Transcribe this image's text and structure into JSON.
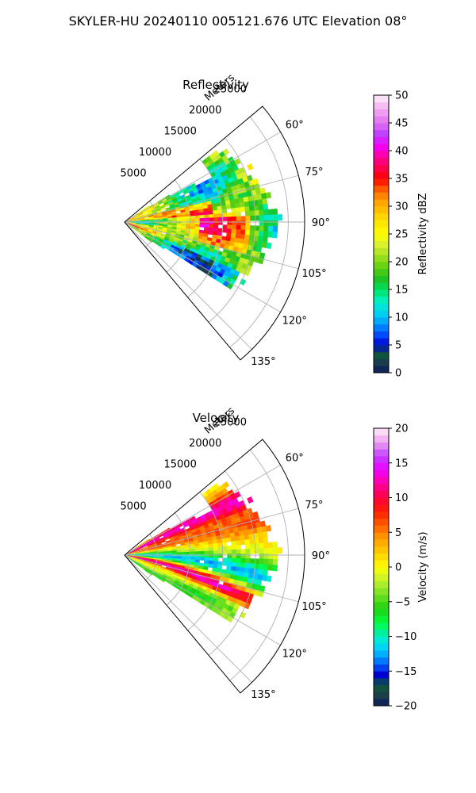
{
  "figure": {
    "title": "SKYLER-HU  20240110  005121.676 UTC Elevation 08°"
  },
  "chart_data": [
    {
      "type": "heatmap",
      "title": "Reflectivity",
      "coordinate_system": "polar-sector",
      "range_label": "Meters",
      "range_ticks": [
        5000,
        10000,
        15000,
        20000,
        25000
      ],
      "range_tick_labels": [
        "5000",
        "10000",
        "15000",
        "20000",
        "25000"
      ],
      "rlim": [
        0,
        27500
      ],
      "azimuth_ticks": [
        60,
        75,
        90,
        105,
        120,
        135
      ],
      "azimuth_tick_labels": [
        "60°",
        "75°",
        "90°",
        "105°",
        "120°",
        "135°"
      ],
      "azimuth_range": [
        50,
        140
      ],
      "grid": true,
      "colorbar": {
        "label": "Reflectivity dBZ",
        "range": [
          0,
          50
        ],
        "ticks": [
          0,
          5,
          10,
          15,
          20,
          25,
          30,
          35,
          40,
          45,
          50
        ],
        "tick_labels": [
          "0",
          "5",
          "10",
          "15",
          "20",
          "25",
          "30",
          "35",
          "40",
          "45",
          "50"
        ],
        "palette": [
          {
            "value": 0,
            "color": "#0a1a5c"
          },
          {
            "value": 2,
            "color": "#1a3f4a"
          },
          {
            "value": 3.5,
            "color": "#0e5a3a"
          },
          {
            "value": 5,
            "color": "#0000d0"
          },
          {
            "value": 7,
            "color": "#0050ff"
          },
          {
            "value": 9,
            "color": "#00a0ff"
          },
          {
            "value": 11,
            "color": "#00d8f0"
          },
          {
            "value": 13,
            "color": "#00f0c0"
          },
          {
            "value": 15,
            "color": "#00e060"
          },
          {
            "value": 17,
            "color": "#20c020"
          },
          {
            "value": 19,
            "color": "#60d010"
          },
          {
            "value": 21,
            "color": "#a0e020"
          },
          {
            "value": 23,
            "color": "#d8f030"
          },
          {
            "value": 25,
            "color": "#ffff00"
          },
          {
            "value": 28,
            "color": "#ffd800"
          },
          {
            "value": 31,
            "color": "#ffa000"
          },
          {
            "value": 33,
            "color": "#ff6000"
          },
          {
            "value": 35,
            "color": "#ff0000"
          },
          {
            "value": 37,
            "color": "#ff0050"
          },
          {
            "value": 39,
            "color": "#ff00a0"
          },
          {
            "value": 41,
            "color": "#f000ff"
          },
          {
            "value": 43,
            "color": "#c040ff"
          },
          {
            "value": 45,
            "color": "#e070f0"
          },
          {
            "value": 47,
            "color": "#f0a0f0"
          },
          {
            "value": 50,
            "color": "#fff0fa"
          }
        ]
      }
    },
    {
      "type": "heatmap",
      "title": "Velocity",
      "coordinate_system": "polar-sector",
      "range_label": "Meters",
      "range_ticks": [
        5000,
        10000,
        15000,
        20000,
        25000
      ],
      "range_tick_labels": [
        "5000",
        "10000",
        "15000",
        "20000",
        "25000"
      ],
      "rlim": [
        0,
        27500
      ],
      "azimuth_ticks": [
        60,
        75,
        90,
        105,
        120,
        135
      ],
      "azimuth_tick_labels": [
        "60°",
        "75°",
        "90°",
        "105°",
        "120°",
        "135°"
      ],
      "azimuth_range": [
        50,
        140
      ],
      "grid": true,
      "colorbar": {
        "label": "Velocity (m/s)",
        "range": [
          -20,
          20
        ],
        "ticks": [
          -20,
          -15,
          -10,
          -5,
          0,
          5,
          10,
          15,
          20
        ],
        "tick_labels": [
          "−20",
          "−15",
          "−10",
          "−5",
          "0",
          "5",
          "10",
          "15",
          "20"
        ],
        "palette": [
          {
            "value": -20,
            "color": "#0a1a5c"
          },
          {
            "value": -18.5,
            "color": "#1a3f4a"
          },
          {
            "value": -17,
            "color": "#0e5a3a"
          },
          {
            "value": -15.5,
            "color": "#0000d0"
          },
          {
            "value": -14,
            "color": "#0060ff"
          },
          {
            "value": -12.5,
            "color": "#00b0ff"
          },
          {
            "value": -11,
            "color": "#00e8f0"
          },
          {
            "value": -9.5,
            "color": "#00f0a0"
          },
          {
            "value": -8,
            "color": "#00ff40"
          },
          {
            "value": -6,
            "color": "#20d010"
          },
          {
            "value": -4,
            "color": "#70e020"
          },
          {
            "value": -2,
            "color": "#c0f030"
          },
          {
            "value": 0,
            "color": "#ffff00"
          },
          {
            "value": 2,
            "color": "#ffd000"
          },
          {
            "value": 4,
            "color": "#ffa000"
          },
          {
            "value": 6,
            "color": "#ff6000"
          },
          {
            "value": 8,
            "color": "#ff2000"
          },
          {
            "value": 10,
            "color": "#ff0040"
          },
          {
            "value": 12,
            "color": "#ff00a0"
          },
          {
            "value": 14,
            "color": "#f000ff"
          },
          {
            "value": 16,
            "color": "#c040ff"
          },
          {
            "value": 18,
            "color": "#f0a0f0"
          },
          {
            "value": 20,
            "color": "#fff0fa"
          }
        ]
      }
    }
  ]
}
